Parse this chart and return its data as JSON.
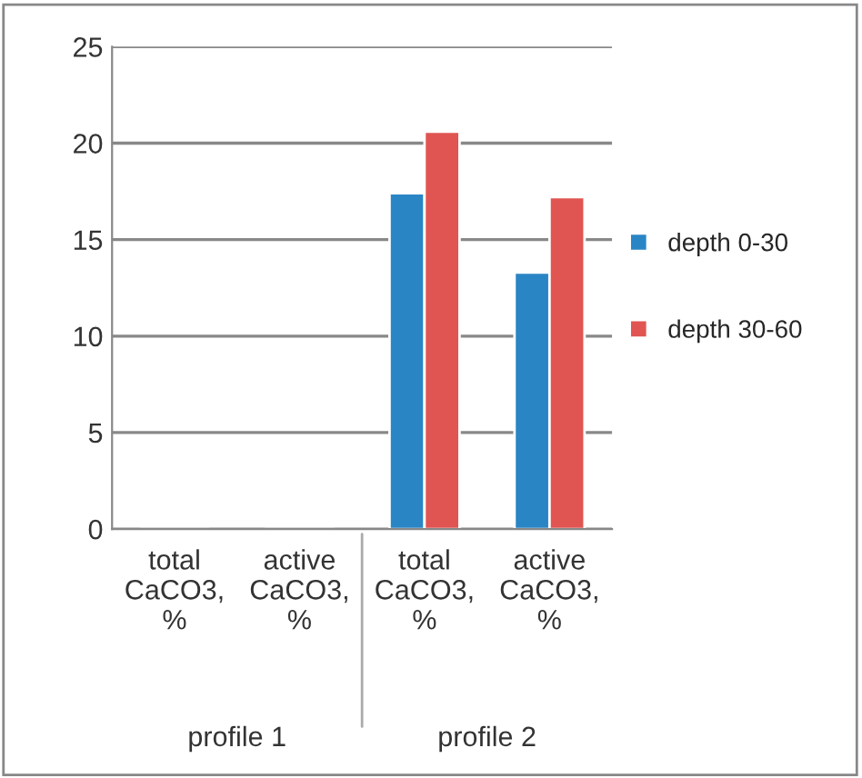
{
  "chart_data": {
    "type": "bar",
    "categories": [
      "total\nCaCO3,\n%",
      "active\nCaCO3,\n%",
      "total\nCaCO3,\n%",
      "active\nCaCO3,\n%"
    ],
    "series": [
      {
        "name": "depth 0-30",
        "color": "#2a85c5",
        "values": [
          0,
          0,
          17.4,
          13.3
        ]
      },
      {
        "name": "depth 30-60",
        "color": "#e05552",
        "values": [
          0,
          0,
          20.6,
          17.2
        ]
      }
    ],
    "annotations": [
      "profile 1",
      "profile 2"
    ],
    "ylim": [
      0,
      25
    ],
    "yticks": [
      0,
      5,
      10,
      15,
      20,
      25
    ],
    "grid": "y",
    "legend": "right"
  }
}
